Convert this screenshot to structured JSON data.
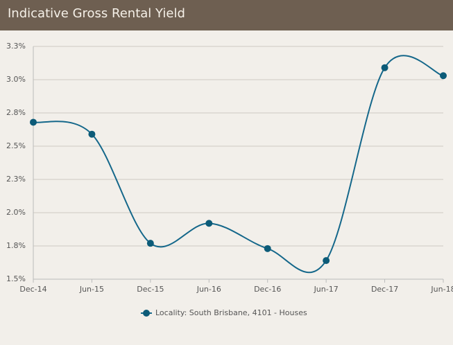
{
  "header": {
    "title": "Indicative Gross Rental Yield"
  },
  "chart_data": {
    "type": "line",
    "categories": [
      "Dec-14",
      "Jun-15",
      "Dec-15",
      "Jun-16",
      "Dec-16",
      "Jun-17",
      "Dec-17",
      "Jun-18"
    ],
    "series": [
      {
        "name": "Locality: South Brisbane, 4101 - Houses",
        "color": "#14678a",
        "values": [
          2.68,
          2.59,
          1.77,
          1.92,
          1.73,
          1.64,
          3.09,
          3.03
        ]
      }
    ],
    "ylim": [
      1.5,
      3.25
    ],
    "yticks": [
      {
        "value": 1.5,
        "label": "1.5%"
      },
      {
        "value": 1.75,
        "label": "1.8%"
      },
      {
        "value": 2.0,
        "label": "2.0%"
      },
      {
        "value": 2.25,
        "label": "2.3%"
      },
      {
        "value": 2.5,
        "label": "2.5%"
      },
      {
        "value": 2.75,
        "label": "2.8%"
      },
      {
        "value": 3.0,
        "label": "3.0%"
      },
      {
        "value": 3.25,
        "label": "3.3%"
      }
    ],
    "grid": true
  }
}
